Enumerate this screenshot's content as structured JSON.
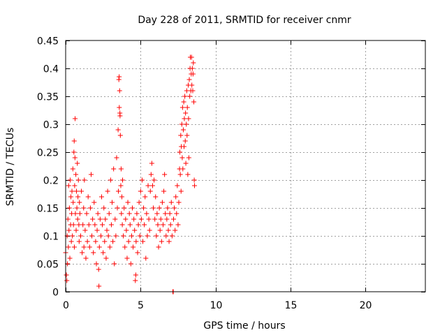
{
  "chart_data": {
    "type": "scatter",
    "title": "Day 228 of 2011, SRMTID for receiver cnmr",
    "xlabel": "GPS time / hours",
    "ylabel": "SRMTID / TECUs",
    "xlim": [
      0,
      24
    ],
    "ylim": [
      0,
      0.45
    ],
    "xticks": [
      0,
      5,
      10,
      15,
      20
    ],
    "yticks": [
      0,
      0.05,
      0.1,
      0.15,
      0.2,
      0.25,
      0.3,
      0.35,
      0.4,
      0.45
    ],
    "xtick_labels": [
      "0",
      "5",
      "10",
      "15",
      "20"
    ],
    "ytick_labels": [
      "0",
      "0.05",
      "0.1",
      "0.15",
      "0.2",
      "0.25",
      "0.3",
      "0.35",
      "0.4",
      "0.45"
    ],
    "grid": true,
    "marker": "plus",
    "color": "#ff0000",
    "series": [
      {
        "name": "SRMTID",
        "points": [
          [
            0.0,
            0.07
          ],
          [
            0.05,
            0.03
          ],
          [
            0.08,
            0.02
          ],
          [
            0.1,
            0.1
          ],
          [
            0.12,
            0.05
          ],
          [
            0.15,
            0.13
          ],
          [
            0.18,
            0.08
          ],
          [
            0.2,
            0.19
          ],
          [
            0.22,
            0.11
          ],
          [
            0.25,
            0.15
          ],
          [
            0.28,
            0.06
          ],
          [
            0.3,
            0.2
          ],
          [
            0.33,
            0.12
          ],
          [
            0.35,
            0.17
          ],
          [
            0.38,
            0.09
          ],
          [
            0.4,
            0.14
          ],
          [
            0.42,
            0.18
          ],
          [
            0.45,
            0.1
          ],
          [
            0.48,
            0.22
          ],
          [
            0.5,
            0.16
          ],
          [
            0.52,
            0.12
          ],
          [
            0.55,
            0.25
          ],
          [
            0.57,
            0.27
          ],
          [
            0.58,
            0.08
          ],
          [
            0.6,
            0.19
          ],
          [
            0.62,
            0.24
          ],
          [
            0.63,
            0.31
          ],
          [
            0.65,
            0.14
          ],
          [
            0.68,
            0.21
          ],
          [
            0.7,
            0.11
          ],
          [
            0.72,
            0.18
          ],
          [
            0.75,
            0.15
          ],
          [
            0.78,
            0.23
          ],
          [
            0.8,
            0.13
          ],
          [
            0.82,
            0.17
          ],
          [
            0.85,
            0.2
          ],
          [
            0.88,
            0.12
          ],
          [
            0.9,
            0.09
          ],
          [
            0.92,
            0.16
          ],
          [
            0.95,
            0.14
          ],
          [
            1.0,
            0.1
          ],
          [
            1.05,
            0.18
          ],
          [
            1.1,
            0.07
          ],
          [
            1.15,
            0.12
          ],
          [
            1.2,
            0.15
          ],
          [
            1.22,
            0.08
          ],
          [
            1.25,
            0.2
          ],
          [
            1.3,
            0.11
          ],
          [
            1.35,
            0.06
          ],
          [
            1.4,
            0.14
          ],
          [
            1.45,
            0.09
          ],
          [
            1.5,
            0.17
          ],
          [
            1.55,
            0.12
          ],
          [
            1.6,
            0.08
          ],
          [
            1.65,
            0.15
          ],
          [
            1.7,
            0.21
          ],
          [
            1.75,
            0.1
          ],
          [
            1.8,
            0.13
          ],
          [
            1.85,
            0.07
          ],
          [
            1.9,
            0.16
          ],
          [
            1.95,
            0.12
          ],
          [
            2.0,
            0.09
          ],
          [
            2.05,
            0.05
          ],
          [
            2.1,
            0.11
          ],
          [
            2.15,
            0.14
          ],
          [
            2.2,
            0.04
          ],
          [
            2.22,
            0.01
          ],
          [
            2.25,
            0.08
          ],
          [
            2.3,
            0.13
          ],
          [
            2.35,
            0.1
          ],
          [
            2.4,
            0.17
          ],
          [
            2.45,
            0.12
          ],
          [
            2.5,
            0.07
          ],
          [
            2.55,
            0.15
          ],
          [
            2.6,
            0.09
          ],
          [
            2.65,
            0.13
          ],
          [
            2.7,
            0.06
          ],
          [
            2.75,
            0.11
          ],
          [
            2.8,
            0.18
          ],
          [
            2.85,
            0.1
          ],
          [
            2.9,
            0.14
          ],
          [
            2.95,
            0.08
          ],
          [
            3.0,
            0.2
          ],
          [
            3.05,
            0.12
          ],
          [
            3.1,
            0.16
          ],
          [
            3.15,
            0.09
          ],
          [
            3.2,
            0.22
          ],
          [
            3.25,
            0.05
          ],
          [
            3.3,
            0.13
          ],
          [
            3.35,
            0.1
          ],
          [
            3.4,
            0.24
          ],
          [
            3.45,
            0.15
          ],
          [
            3.5,
            0.29
          ],
          [
            3.52,
            0.18
          ],
          [
            3.55,
            0.38
          ],
          [
            3.57,
            0.385
          ],
          [
            3.58,
            0.33
          ],
          [
            3.6,
            0.36
          ],
          [
            3.62,
            0.32
          ],
          [
            3.63,
            0.315
          ],
          [
            3.65,
            0.28
          ],
          [
            3.68,
            0.19
          ],
          [
            3.7,
            0.22
          ],
          [
            3.72,
            0.14
          ],
          [
            3.75,
            0.17
          ],
          [
            3.78,
            0.12
          ],
          [
            3.8,
            0.2
          ],
          [
            3.85,
            0.1
          ],
          [
            3.9,
            0.15
          ],
          [
            3.95,
            0.08
          ],
          [
            4.0,
            0.13
          ],
          [
            4.05,
            0.11
          ],
          [
            4.1,
            0.06
          ],
          [
            4.15,
            0.16
          ],
          [
            4.2,
            0.09
          ],
          [
            4.25,
            0.14
          ],
          [
            4.3,
            0.12
          ],
          [
            4.35,
            0.05
          ],
          [
            4.4,
            0.1
          ],
          [
            4.45,
            0.15
          ],
          [
            4.5,
            0.08
          ],
          [
            4.55,
            0.13
          ],
          [
            4.6,
            0.11
          ],
          [
            4.65,
            0.02
          ],
          [
            4.68,
            0.03
          ],
          [
            4.7,
            0.09
          ],
          [
            4.75,
            0.14
          ],
          [
            4.8,
            0.07
          ],
          [
            4.85,
            0.12
          ],
          [
            4.9,
            0.16
          ],
          [
            4.95,
            0.1
          ],
          [
            5.0,
            0.18
          ],
          [
            5.05,
            0.13
          ],
          [
            5.1,
            0.2
          ],
          [
            5.15,
            0.09
          ],
          [
            5.2,
            0.15
          ],
          [
            5.25,
            0.12
          ],
          [
            5.3,
            0.17
          ],
          [
            5.35,
            0.06
          ],
          [
            5.4,
            0.14
          ],
          [
            5.45,
            0.1
          ],
          [
            5.5,
            0.19
          ],
          [
            5.55,
            0.13
          ],
          [
            5.6,
            0.11
          ],
          [
            5.65,
            0.18
          ],
          [
            5.7,
            0.21
          ],
          [
            5.75,
            0.23
          ],
          [
            5.8,
            0.19
          ],
          [
            5.85,
            0.15
          ],
          [
            5.9,
            0.2
          ],
          [
            5.95,
            0.13
          ],
          [
            6.0,
            0.17
          ],
          [
            6.05,
            0.1
          ],
          [
            6.1,
            0.14
          ],
          [
            6.15,
            0.12
          ],
          [
            6.2,
            0.08
          ],
          [
            6.25,
            0.15
          ],
          [
            6.3,
            0.11
          ],
          [
            6.35,
            0.13
          ],
          [
            6.4,
            0.09
          ],
          [
            6.45,
            0.16
          ],
          [
            6.5,
            0.12
          ],
          [
            6.55,
            0.18
          ],
          [
            6.6,
            0.21
          ],
          [
            6.65,
            0.14
          ],
          [
            6.7,
            0.1
          ],
          [
            6.75,
            0.13
          ],
          [
            6.8,
            0.15
          ],
          [
            6.85,
            0.11
          ],
          [
            6.9,
            0.09
          ],
          [
            6.95,
            0.14
          ],
          [
            7.0,
            0.12
          ],
          [
            7.05,
            0.16
          ],
          [
            7.1,
            0.1
          ],
          [
            7.15,
            0.0
          ],
          [
            7.18,
            0.0
          ],
          [
            7.2,
            0.13
          ],
          [
            7.25,
            0.15
          ],
          [
            7.3,
            0.11
          ],
          [
            7.35,
            0.17
          ],
          [
            7.4,
            0.14
          ],
          [
            7.45,
            0.19
          ],
          [
            7.5,
            0.12
          ],
          [
            7.55,
            0.16
          ],
          [
            7.6,
            0.22
          ],
          [
            7.62,
            0.25
          ],
          [
            7.65,
            0.21
          ],
          [
            7.68,
            0.28
          ],
          [
            7.7,
            0.18
          ],
          [
            7.72,
            0.26
          ],
          [
            7.75,
            0.3
          ],
          [
            7.78,
            0.24
          ],
          [
            7.8,
            0.33
          ],
          [
            7.82,
            0.22
          ],
          [
            7.85,
            0.29
          ],
          [
            7.88,
            0.34
          ],
          [
            7.9,
            0.26
          ],
          [
            7.92,
            0.31
          ],
          [
            7.95,
            0.35
          ],
          [
            7.98,
            0.27
          ],
          [
            8.0,
            0.32
          ],
          [
            8.02,
            0.23
          ],
          [
            8.05,
            0.3
          ],
          [
            8.08,
            0.36
          ],
          [
            8.1,
            0.28
          ],
          [
            8.12,
            0.33
          ],
          [
            8.15,
            0.21
          ],
          [
            8.18,
            0.37
          ],
          [
            8.2,
            0.31
          ],
          [
            8.22,
            0.24
          ],
          [
            8.25,
            0.38
          ],
          [
            8.28,
            0.35
          ],
          [
            8.3,
            0.4
          ],
          [
            8.32,
            0.42
          ],
          [
            8.35,
            0.36
          ],
          [
            8.38,
            0.39
          ],
          [
            8.4,
            0.42
          ],
          [
            8.42,
            0.37
          ],
          [
            8.45,
            0.4
          ],
          [
            8.48,
            0.36
          ],
          [
            8.5,
            0.39
          ],
          [
            8.52,
            0.41
          ],
          [
            8.55,
            0.34
          ],
          [
            8.58,
            0.2
          ],
          [
            8.6,
            0.19
          ]
        ]
      }
    ]
  }
}
